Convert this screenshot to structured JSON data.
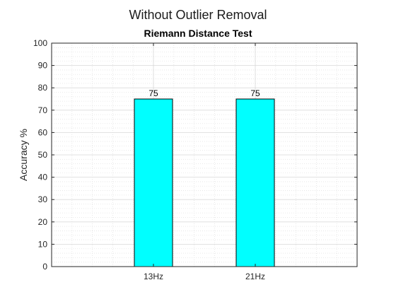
{
  "figure": {
    "title": "Without Outlier Removal",
    "subtitle": "Riemann Distance Test"
  },
  "chart_data": {
    "type": "bar",
    "title": "Riemann Distance Test",
    "suptitle": "Without Outlier Removal",
    "categories": [
      "13Hz",
      "21Hz"
    ],
    "values": [
      75,
      75
    ],
    "data_labels": [
      "75",
      "75"
    ],
    "xlabel": "",
    "ylabel": "Accuracy %",
    "ylim": [
      0,
      100
    ],
    "yticks": [
      "0",
      "10",
      "20",
      "30",
      "40",
      "50",
      "60",
      "70",
      "80",
      "90",
      "100"
    ],
    "grid": true,
    "minor_grid": true,
    "legend": "none",
    "colors": {
      "bar_fill": "#00ffff",
      "bar_edge": "#000000",
      "grid": "#d9d9d9",
      "axis": "#262626"
    }
  }
}
